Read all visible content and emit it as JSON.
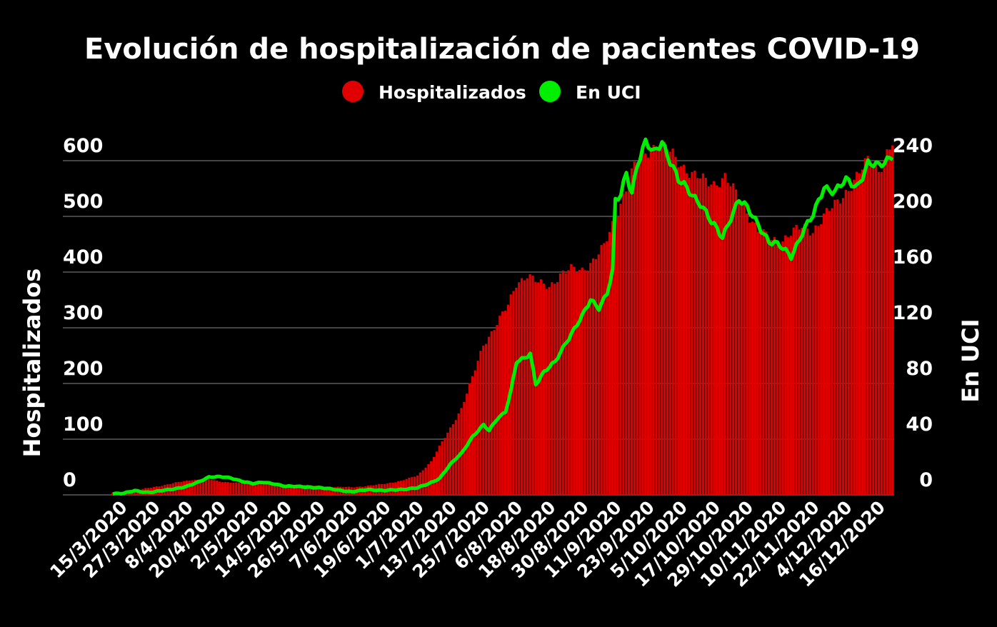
{
  "chart_data": {
    "type": "bar",
    "title": "Evolución de hospitalización de pacientes COVID-19",
    "legend": {
      "placement": "top-center"
    },
    "grid": true,
    "x_start": "12/3/2020",
    "x_end": "21/12/2020",
    "x_tick_labels": [
      "15/3/2020",
      "27/3/2020",
      "8/4/2020",
      "20/4/2020",
      "2/5/2020",
      "14/5/2020",
      "26/5/2020",
      "7/6/2020",
      "19/6/2020",
      "1/7/2020",
      "13/7/2020",
      "25/7/2020",
      "6/8/2020",
      "18/8/2020",
      "30/8/2020",
      "11/9/2020",
      "23/9/2020",
      "5/10/2020",
      "17/10/2020",
      "29/10/2020",
      "10/11/2020",
      "22/11/2020",
      "4/12/2020",
      "16/12/2020"
    ],
    "y_left": {
      "label": "Hospitalizados",
      "ylim": [
        0,
        650
      ],
      "ticks": [
        0,
        100,
        200,
        300,
        400,
        500,
        600
      ]
    },
    "y_right": {
      "label": "En UCI",
      "ylim": [
        0,
        260
      ],
      "ticks": [
        0,
        40,
        80,
        120,
        160,
        200,
        240
      ]
    },
    "series": [
      {
        "name": "Hospitalizados",
        "type": "bar",
        "axis": "left",
        "color": "#e00000",
        "keypoints": [
          [
            "12/3/2020",
            3
          ],
          [
            "20/3/2020",
            8
          ],
          [
            "27/3/2020",
            14
          ],
          [
            "4/4/2020",
            22
          ],
          [
            "10/4/2020",
            27
          ],
          [
            "16/4/2020",
            28
          ],
          [
            "20/4/2020",
            24
          ],
          [
            "26/4/2020",
            22
          ],
          [
            "2/5/2020",
            20
          ],
          [
            "8/5/2020",
            19
          ],
          [
            "14/5/2020",
            18
          ],
          [
            "20/5/2020",
            18
          ],
          [
            "26/5/2020",
            16
          ],
          [
            "1/6/2020",
            14
          ],
          [
            "7/6/2020",
            14
          ],
          [
            "13/6/2020",
            16
          ],
          [
            "19/6/2020",
            20
          ],
          [
            "25/6/2020",
            25
          ],
          [
            "1/7/2020",
            35
          ],
          [
            "6/7/2020",
            60
          ],
          [
            "10/7/2020",
            95
          ],
          [
            "13/7/2020",
            120
          ],
          [
            "17/7/2020",
            155
          ],
          [
            "21/7/2020",
            210
          ],
          [
            "25/7/2020",
            270
          ],
          [
            "29/7/2020",
            300
          ],
          [
            "3/8/2020",
            340
          ],
          [
            "6/8/2020",
            380
          ],
          [
            "10/8/2020",
            395
          ],
          [
            "14/8/2020",
            380
          ],
          [
            "18/8/2020",
            375
          ],
          [
            "22/8/2020",
            395
          ],
          [
            "26/8/2020",
            405
          ],
          [
            "30/8/2020",
            405
          ],
          [
            "3/9/2020",
            420
          ],
          [
            "7/9/2020",
            445
          ],
          [
            "11/9/2020",
            500
          ],
          [
            "15/9/2020",
            550
          ],
          [
            "19/9/2020",
            600
          ],
          [
            "23/9/2020",
            620
          ],
          [
            "27/9/2020",
            630
          ],
          [
            "1/10/2020",
            615
          ],
          [
            "5/10/2020",
            595
          ],
          [
            "9/10/2020",
            575
          ],
          [
            "13/10/2020",
            565
          ],
          [
            "17/10/2020",
            560
          ],
          [
            "21/10/2020",
            570
          ],
          [
            "25/10/2020",
            540
          ],
          [
            "29/10/2020",
            510
          ],
          [
            "2/11/2020",
            475
          ],
          [
            "6/11/2020",
            460
          ],
          [
            "10/11/2020",
            455
          ],
          [
            "14/11/2020",
            470
          ],
          [
            "18/11/2020",
            480
          ],
          [
            "22/11/2020",
            475
          ],
          [
            "26/11/2020",
            500
          ],
          [
            "30/11/2020",
            520
          ],
          [
            "4/12/2020",
            545
          ],
          [
            "8/12/2020",
            570
          ],
          [
            "12/12/2020",
            600
          ],
          [
            "16/12/2020",
            585
          ],
          [
            "21/12/2020",
            630
          ]
        ]
      },
      {
        "name": "En UCI",
        "type": "line",
        "axis": "right",
        "color": "#00ee00",
        "keypoints": [
          [
            "12/3/2020",
            1
          ],
          [
            "16/3/2020",
            1
          ],
          [
            "20/3/2020",
            3
          ],
          [
            "24/3/2020",
            2
          ],
          [
            "27/3/2020",
            2
          ],
          [
            "2/4/2020",
            4
          ],
          [
            "8/4/2020",
            6
          ],
          [
            "12/4/2020",
            9
          ],
          [
            "16/4/2020",
            13
          ],
          [
            "20/4/2020",
            13
          ],
          [
            "24/4/2020",
            12
          ],
          [
            "28/4/2020",
            10
          ],
          [
            "2/5/2020",
            8
          ],
          [
            "6/5/2020",
            9
          ],
          [
            "10/5/2020",
            8
          ],
          [
            "14/5/2020",
            6
          ],
          [
            "20/5/2020",
            6
          ],
          [
            "26/5/2020",
            5
          ],
          [
            "1/6/2020",
            4
          ],
          [
            "7/6/2020",
            2
          ],
          [
            "13/6/2020",
            4
          ],
          [
            "19/6/2020",
            3
          ],
          [
            "25/6/2020",
            4
          ],
          [
            "1/7/2020",
            5
          ],
          [
            "5/7/2020",
            8
          ],
          [
            "9/7/2020",
            12
          ],
          [
            "13/7/2020",
            22
          ],
          [
            "17/7/2020",
            30
          ],
          [
            "21/7/2020",
            42
          ],
          [
            "25/7/2020",
            50
          ],
          [
            "27/7/2020",
            46
          ],
          [
            "30/7/2020",
            55
          ],
          [
            "2/8/2020",
            60
          ],
          [
            "4/8/2020",
            75
          ],
          [
            "6/8/2020",
            95
          ],
          [
            "9/8/2020",
            98
          ],
          [
            "11/8/2020",
            102
          ],
          [
            "13/8/2020",
            80
          ],
          [
            "16/8/2020",
            88
          ],
          [
            "20/8/2020",
            95
          ],
          [
            "24/8/2020",
            110
          ],
          [
            "28/8/2020",
            122
          ],
          [
            "30/8/2020",
            128
          ],
          [
            "2/9/2020",
            140
          ],
          [
            "5/9/2020",
            135
          ],
          [
            "8/9/2020",
            145
          ],
          [
            "10/9/2020",
            160
          ],
          [
            "11/9/2020",
            210
          ],
          [
            "13/9/2020",
            215
          ],
          [
            "15/9/2020",
            232
          ],
          [
            "17/9/2020",
            218
          ],
          [
            "19/9/2020",
            238
          ],
          [
            "22/9/2020",
            252
          ],
          [
            "25/9/2020",
            245
          ],
          [
            "28/9/2020",
            255
          ],
          [
            "1/10/2020",
            240
          ],
          [
            "4/10/2020",
            225
          ],
          [
            "8/10/2020",
            218
          ],
          [
            "12/10/2020",
            210
          ],
          [
            "16/10/2020",
            195
          ],
          [
            "20/10/2020",
            185
          ],
          [
            "23/10/2020",
            200
          ],
          [
            "26/10/2020",
            212
          ],
          [
            "29/10/2020",
            205
          ],
          [
            "2/11/2020",
            195
          ],
          [
            "6/11/2020",
            182
          ],
          [
            "10/11/2020",
            178
          ],
          [
            "14/11/2020",
            172
          ],
          [
            "18/11/2020",
            188
          ],
          [
            "22/11/2020",
            200
          ],
          [
            "26/11/2020",
            222
          ],
          [
            "30/11/2020",
            218
          ],
          [
            "4/12/2020",
            225
          ],
          [
            "8/12/2020",
            222
          ],
          [
            "12/12/2020",
            238
          ],
          [
            "16/12/2020",
            235
          ],
          [
            "21/12/2020",
            245
          ]
        ]
      }
    ]
  }
}
